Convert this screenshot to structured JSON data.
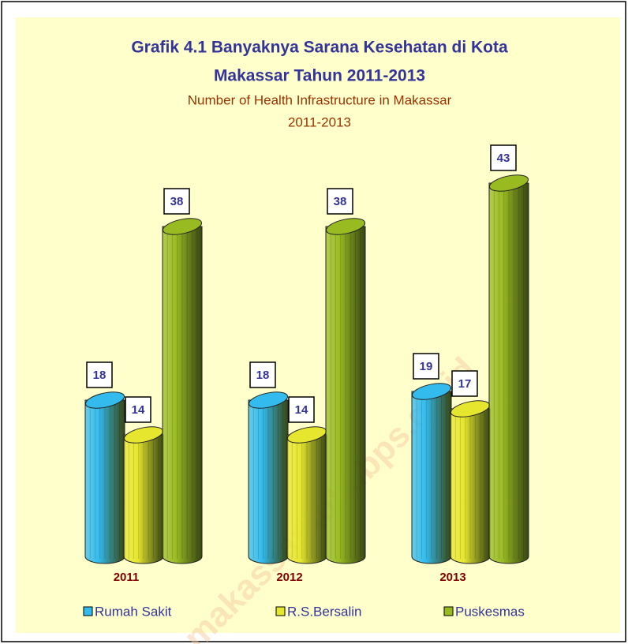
{
  "chart_data": {
    "type": "bar",
    "title": [
      "Grafik 4.1 Banyaknya Sarana Kesehatan di Kota",
      "Makassar Tahun 2011-2013"
    ],
    "subtitle": [
      "Number of Health Infrastructure in Makassar",
      "2011-2013"
    ],
    "categories": [
      "2011",
      "2012",
      "2013"
    ],
    "series": [
      {
        "name": "Rumah Sakit",
        "color": "#33bbee",
        "values": [
          18,
          18,
          19
        ]
      },
      {
        "name": "R.S.Bersalin",
        "color": "#e6e62e",
        "values": [
          14,
          14,
          17
        ]
      },
      {
        "name": "Puskesmas",
        "color": "#99bb22",
        "values": [
          38,
          38,
          43
        ]
      }
    ],
    "legend": "bottom",
    "watermark": "makassarkota.bps.go.id"
  }
}
